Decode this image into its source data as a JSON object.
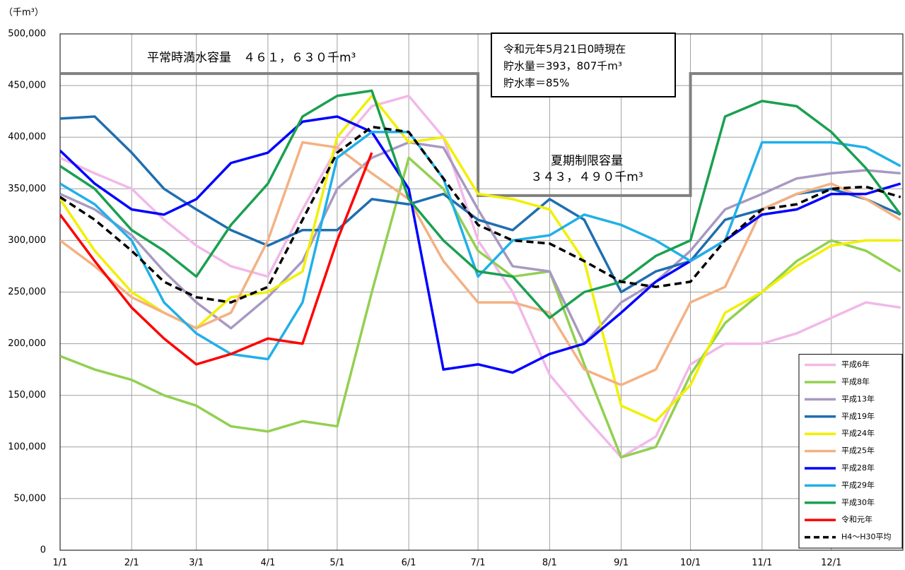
{
  "chart_data": {
    "type": "line",
    "y_unit_label": "（千m³）",
    "annotations": {
      "normal_capacity": "平常時満水容量　４６１，６３０千m³",
      "summer_label": "夏期制限容量",
      "summer_capacity": "３４３，４９０千m³",
      "status": [
        "令和元年5月21日0時現在",
        "貯水量＝393，807千m³",
        "貯水率＝85%"
      ]
    },
    "capacity_line": {
      "color": "#808080",
      "x": [
        0,
        181,
        181,
        273,
        273,
        365
      ],
      "values": [
        461630,
        461630,
        343490,
        343490,
        461630,
        461630
      ]
    },
    "xlim": [
      0,
      365
    ],
    "xticks": [
      {
        "value": 0,
        "label": "1/1"
      },
      {
        "value": 31,
        "label": "2/1"
      },
      {
        "value": 59,
        "label": "3/1"
      },
      {
        "value": 90,
        "label": "4/1"
      },
      {
        "value": 120,
        "label": "5/1"
      },
      {
        "value": 151,
        "label": "6/1"
      },
      {
        "value": 181,
        "label": "7/1"
      },
      {
        "value": 212,
        "label": "8/1"
      },
      {
        "value": 243,
        "label": "9/1"
      },
      {
        "value": 273,
        "label": "10/1"
      },
      {
        "value": 304,
        "label": "11/1"
      },
      {
        "value": 334,
        "label": "12/1"
      }
    ],
    "ylim": [
      0,
      500000
    ],
    "yticks": [
      0,
      {
        "value": 50000,
        "label": "50,000"
      },
      {
        "value": 100000,
        "label": "100,000"
      },
      {
        "value": 150000,
        "label": "150,000"
      },
      {
        "value": 200000,
        "label": "200,000"
      },
      {
        "value": 250000,
        "label": "250,000"
      },
      {
        "value": 300000,
        "label": "300,000"
      },
      {
        "value": 350000,
        "label": "350,000"
      },
      {
        "value": 400000,
        "label": "400,000"
      },
      {
        "value": 450000,
        "label": "450,000"
      },
      {
        "value": 500000,
        "label": "500,000"
      }
    ],
    "grid": true,
    "legend": "lower-right",
    "x": [
      0,
      15,
      31,
      45,
      59,
      74,
      90,
      105,
      120,
      135,
      151,
      166,
      181,
      196,
      212,
      227,
      243,
      258,
      273,
      288,
      304,
      319,
      334,
      349,
      364
    ],
    "series": [
      {
        "name": "平成6年",
        "color": "#f2b8e8",
        "values": [
          380000,
          365000,
          350000,
          320000,
          295000,
          275000,
          265000,
          330000,
          390000,
          430000,
          440000,
          400000,
          300000,
          250000,
          170000,
          130000,
          90000,
          110000,
          180000,
          200000,
          200000,
          210000,
          225000,
          240000,
          235000
        ]
      },
      {
        "name": "平成8年",
        "color": "#92d050",
        "values": [
          188000,
          175000,
          165000,
          150000,
          140000,
          120000,
          115000,
          125000,
          120000,
          250000,
          380000,
          350000,
          290000,
          265000,
          270000,
          180000,
          90000,
          100000,
          170000,
          220000,
          250000,
          280000,
          300000,
          290000,
          270000
        ]
      },
      {
        "name": "平成13年",
        "color": "#a899c2",
        "values": [
          345000,
          330000,
          305000,
          270000,
          240000,
          215000,
          245000,
          280000,
          350000,
          380000,
          395000,
          390000,
          330000,
          275000,
          270000,
          200000,
          240000,
          260000,
          290000,
          330000,
          345000,
          360000,
          365000,
          368000,
          365000
        ]
      },
      {
        "name": "平成19年",
        "color": "#1f6eb0",
        "values": [
          418000,
          420000,
          385000,
          350000,
          330000,
          310000,
          295000,
          310000,
          310000,
          340000,
          335000,
          345000,
          320000,
          310000,
          340000,
          320000,
          250000,
          270000,
          280000,
          320000,
          330000,
          345000,
          350000,
          340000,
          325000
        ]
      },
      {
        "name": "平成24年",
        "color": "#f0f000",
        "values": [
          340000,
          290000,
          250000,
          230000,
          215000,
          245000,
          250000,
          270000,
          400000,
          440000,
          395000,
          400000,
          345000,
          340000,
          330000,
          280000,
          140000,
          125000,
          160000,
          230000,
          250000,
          275000,
          295000,
          300000,
          300000
        ]
      },
      {
        "name": "平成25年",
        "color": "#f4b183",
        "values": [
          300000,
          275000,
          245000,
          230000,
          215000,
          230000,
          300000,
          395000,
          390000,
          365000,
          340000,
          280000,
          240000,
          240000,
          230000,
          175000,
          160000,
          175000,
          240000,
          255000,
          330000,
          345000,
          355000,
          340000,
          320000
        ]
      },
      {
        "name": "平成28年",
        "color": "#0000ff",
        "values": [
          387000,
          355000,
          330000,
          325000,
          340000,
          375000,
          385000,
          415000,
          420000,
          405000,
          350000,
          175000,
          180000,
          172000,
          190000,
          200000,
          230000,
          260000,
          280000,
          300000,
          325000,
          330000,
          345000,
          345000,
          355000
        ]
      },
      {
        "name": "平成29年",
        "color": "#21b0e8",
        "values": [
          355000,
          335000,
          300000,
          240000,
          210000,
          190000,
          185000,
          240000,
          380000,
          405000,
          405000,
          360000,
          265000,
          300000,
          305000,
          325000,
          315000,
          300000,
          280000,
          300000,
          395000,
          395000,
          395000,
          390000,
          372000
        ]
      },
      {
        "name": "平成30年",
        "color": "#1aa050",
        "values": [
          372000,
          350000,
          310000,
          290000,
          265000,
          315000,
          355000,
          420000,
          440000,
          445000,
          340000,
          300000,
          270000,
          265000,
          225000,
          250000,
          260000,
          285000,
          300000,
          420000,
          435000,
          430000,
          405000,
          370000,
          325000
        ]
      },
      {
        "name": "令和元年",
        "color": "#ff0000",
        "values": [
          325000,
          280000,
          235000,
          205000,
          180000,
          190000,
          205000,
          200000,
          300000,
          385000,
          null,
          null,
          null,
          null,
          null,
          null,
          null,
          null,
          null,
          null,
          null,
          null,
          null,
          null,
          null
        ]
      },
      {
        "name": "H4～H30平均",
        "color": "#000000",
        "dashed": true,
        "values": [
          342000,
          320000,
          290000,
          260000,
          245000,
          240000,
          255000,
          320000,
          385000,
          410000,
          405000,
          360000,
          315000,
          300000,
          297000,
          280000,
          260000,
          255000,
          260000,
          300000,
          330000,
          335000,
          350000,
          352000,
          342000
        ]
      }
    ]
  }
}
